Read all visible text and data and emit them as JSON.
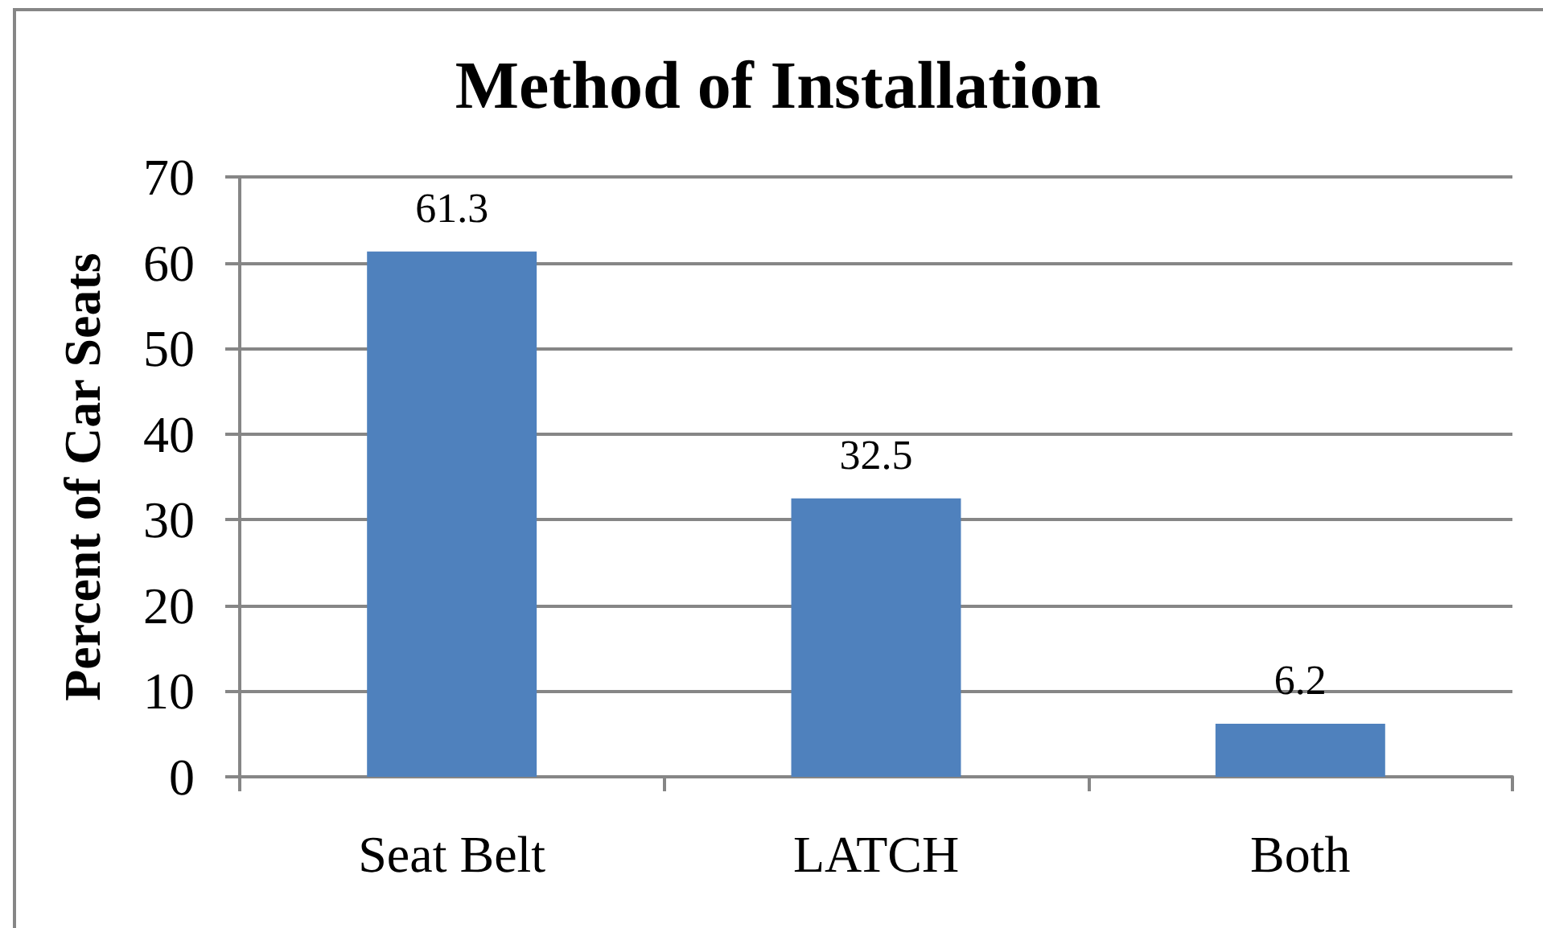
{
  "chart_data": {
    "type": "bar",
    "title": "Method of Installation",
    "ylabel": "Percent of Car Seats",
    "categories": [
      "Seat Belt",
      "LATCH",
      "Both"
    ],
    "values": [
      61.3,
      32.5,
      6.2
    ],
    "color": "#4f81bd",
    "ylim": [
      0,
      70
    ],
    "yticks": [
      0,
      10,
      20,
      30,
      40,
      50,
      60,
      70
    ],
    "grid": "y",
    "data_labels": true
  }
}
